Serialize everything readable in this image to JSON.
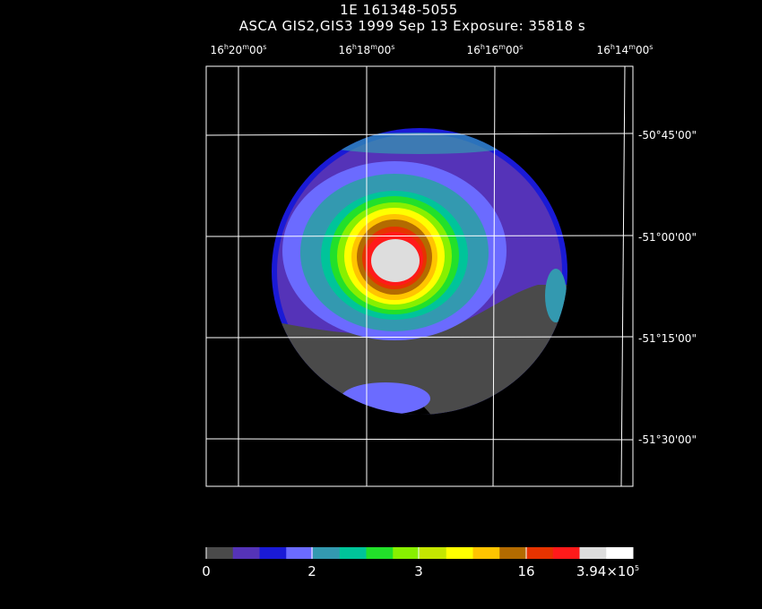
{
  "title": "1E 161348-5055",
  "subtitle": "ASCA GIS2,GIS3    1999 Sep 13    Exposure: 35818 s",
  "ra_labels": [
    {
      "h": "16",
      "m": "20",
      "s": "00"
    },
    {
      "h": "16",
      "m": "18",
      "s": "00"
    },
    {
      "h": "16",
      "m": "16",
      "s": "00"
    },
    {
      "h": "16",
      "m": "14",
      "s": "00"
    }
  ],
  "dec_labels": [
    "-50°45'00\"",
    "-51°00'00\"",
    "-51°15'00\"",
    "-51°30'00\""
  ],
  "colorbar": {
    "colors": [
      "#4a4a4a",
      "#5533b8",
      "#1a1ad6",
      "#6b6bff",
      "#3399b0",
      "#00c49a",
      "#22e02a",
      "#88f000",
      "#c4e600",
      "#ffff00",
      "#ffc400",
      "#b36b00",
      "#e63300",
      "#ff1a1a",
      "#dddddd",
      "#ffffff"
    ],
    "tick_labels": [
      "0",
      "2",
      "3",
      "16"
    ],
    "max_label": {
      "base": "3.94×10",
      "exp": "5"
    }
  },
  "legend_colors": {
    "grid": "#ffffff",
    "background": "#000000"
  }
}
